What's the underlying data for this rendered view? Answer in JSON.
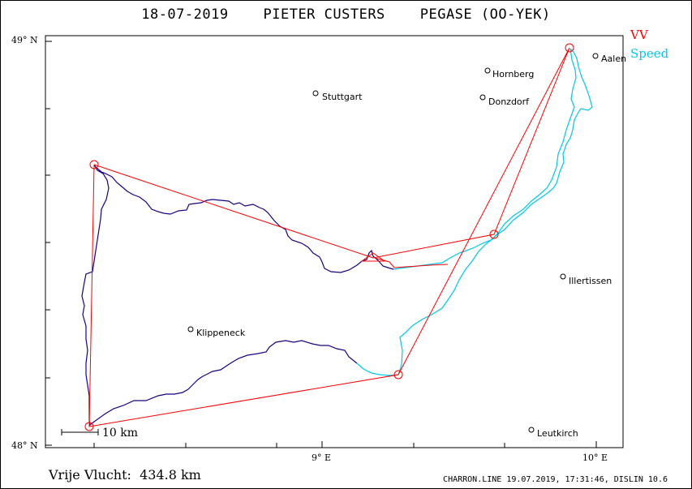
{
  "title": "18-07-2019    PIETER CUSTERS    PEGASE (OO-YEK)",
  "legend": {
    "vv": "VV",
    "speed": "Speed"
  },
  "colors": {
    "task": "#ff0000",
    "track": "#1a0080",
    "speed": "#00c8e6"
  },
  "axes": {
    "lat_top": "49° N",
    "lat_bottom": "48° N",
    "lon_9": "9° E",
    "lon_10": "10° E"
  },
  "cities": [
    {
      "name": "Aalen"
    },
    {
      "name": "Hornberg"
    },
    {
      "name": "Stuttgart"
    },
    {
      "name": "Donzdorf"
    },
    {
      "name": "Illertissen"
    },
    {
      "name": "Klippeneck"
    },
    {
      "name": "Leutkirch"
    }
  ],
  "scale_label": "10 km",
  "distance_text": "Vrije Vlucht:  434.8 km",
  "footer": "CHARRON.LINE 19.07.2019, 17:31:46, DISLIN 10.6"
}
